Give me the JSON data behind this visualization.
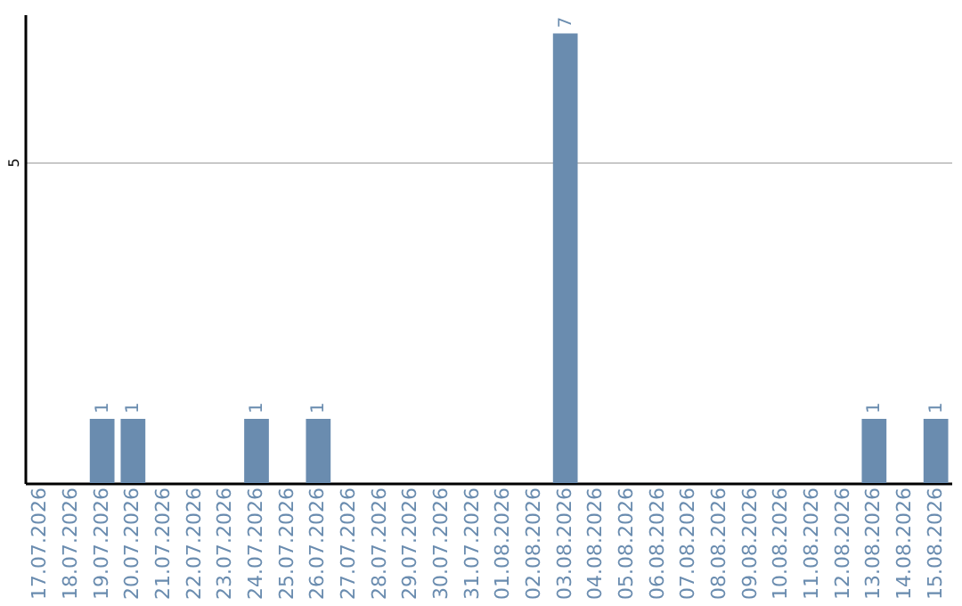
{
  "chart_data": {
    "type": "bar",
    "categories": [
      "17.07.2026",
      "18.07.2026",
      "19.07.2026",
      "20.07.2026",
      "21.07.2026",
      "22.07.2026",
      "23.07.2026",
      "24.07.2026",
      "25.07.2026",
      "26.07.2026",
      "27.07.2026",
      "28.07.2026",
      "29.07.2026",
      "30.07.2026",
      "31.07.2026",
      "01.08.2026",
      "02.08.2026",
      "03.08.2026",
      "04.08.2026",
      "05.08.2026",
      "06.08.2026",
      "07.08.2026",
      "08.08.2026",
      "09.08.2026",
      "10.08.2026",
      "11.08.2026",
      "12.08.2026",
      "13.08.2026",
      "14.08.2026",
      "15.08.2026"
    ],
    "values": [
      0,
      0,
      1,
      1,
      0,
      0,
      0,
      1,
      0,
      1,
      0,
      0,
      0,
      0,
      0,
      0,
      0,
      7,
      0,
      0,
      0,
      0,
      0,
      0,
      0,
      0,
      0,
      1,
      0,
      1
    ],
    "value_labels": [
      null,
      null,
      "1",
      "1",
      null,
      null,
      null,
      "1",
      null,
      "1",
      null,
      null,
      null,
      null,
      null,
      null,
      null,
      "7",
      null,
      null,
      null,
      null,
      null,
      null,
      null,
      null,
      null,
      "1",
      null,
      "1"
    ],
    "color": "#6a8caf",
    "ylim": [
      0,
      7.3
    ],
    "yticks": [
      5
    ],
    "grid": "y"
  }
}
